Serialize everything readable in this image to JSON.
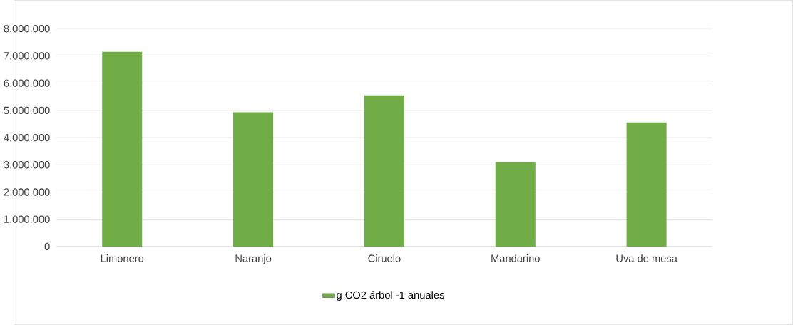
{
  "chart_data": {
    "type": "bar",
    "categories": [
      "Limonero",
      "Naranjo",
      "Ciruelo",
      "Mandarino",
      "Uva de mesa"
    ],
    "series": [
      {
        "name": "g CO2 árbol -1 anuales",
        "color": "#70ad47",
        "values": [
          7150000,
          4930000,
          5550000,
          3090000,
          4560000
        ]
      }
    ],
    "ylim": [
      0,
      8000000
    ],
    "yticks": [
      {
        "value": 0,
        "label": "0"
      },
      {
        "value": 1000000,
        "label": "1.000.000"
      },
      {
        "value": 2000000,
        "label": "2.000.000"
      },
      {
        "value": 3000000,
        "label": "3.000.000"
      },
      {
        "value": 4000000,
        "label": "4.000.000"
      },
      {
        "value": 5000000,
        "label": "5.000.000"
      },
      {
        "value": 6000000,
        "label": "6.000.000"
      },
      {
        "value": 7000000,
        "label": "7.000.000"
      },
      {
        "value": 8000000,
        "label": "8.000.000"
      }
    ],
    "grid": "y",
    "legend": "bottom"
  }
}
